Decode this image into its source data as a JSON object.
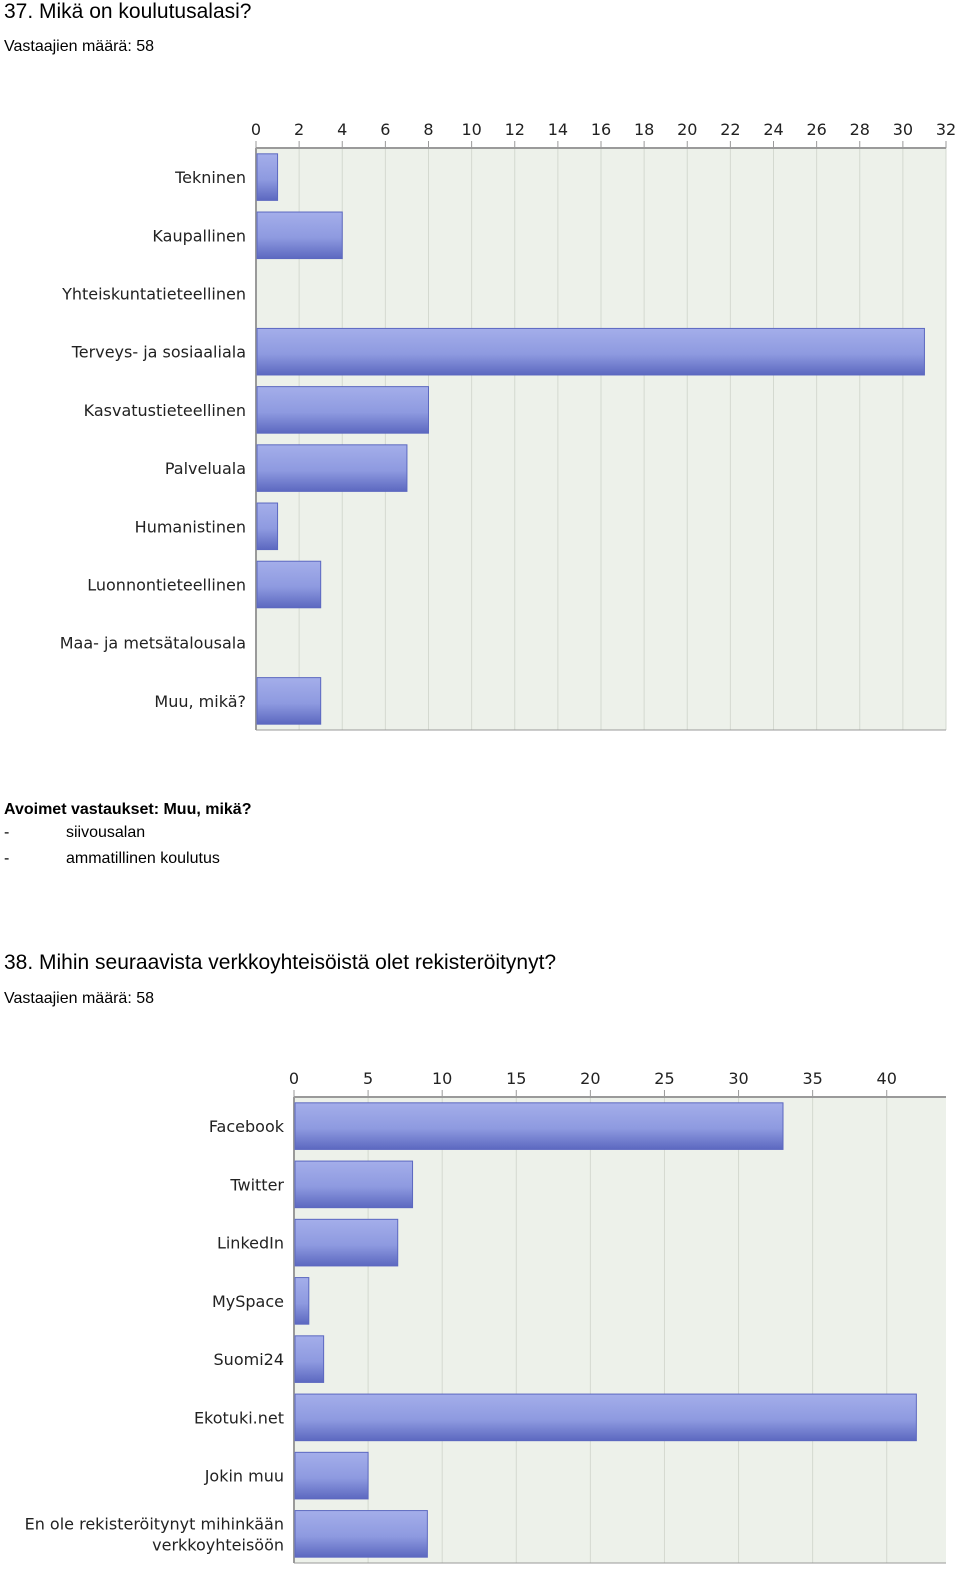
{
  "q37": {
    "title": "37. Mikä on koulutusalasi?",
    "respondents": "Vastaajien määrä: 58"
  },
  "open_answers": {
    "heading": "Avoimet vastaukset: Muu, mikä?",
    "items": [
      {
        "bullet": "-",
        "text": "siivousalan"
      },
      {
        "bullet": "-",
        "text": "ammatillinen koulutus"
      }
    ]
  },
  "q38": {
    "title": "38. Mihin seuraavista verkkoyhteisöistä olet rekisteröitynyt?",
    "respondents": "Vastaajien määrä: 58"
  },
  "chart_data": [
    {
      "type": "bar",
      "orientation": "horizontal",
      "categories": [
        "Tekninen",
        "Kaupallinen",
        "Yhteiskuntatieteellinen",
        "Terveys- ja sosiaaliala",
        "Kasvatustieteellinen",
        "Palveluala",
        "Humanistinen",
        "Luonnontieteellinen",
        "Maa- ja metsätalousala",
        "Muu, mikä?"
      ],
      "values": [
        1,
        4,
        0,
        31,
        8,
        7,
        1,
        3,
        0,
        3
      ],
      "xlim": [
        0,
        32
      ],
      "xticks": [
        0,
        2,
        4,
        6,
        8,
        10,
        12,
        14,
        16,
        18,
        20,
        22,
        24,
        26,
        28,
        30,
        32
      ],
      "tick_position": "top",
      "grid": true,
      "colors": {
        "bar": "#8e9ae0",
        "bar_dark": "#5c68c0",
        "plot_bg": "#edf1ea",
        "grid": "#d4d9d0",
        "axis": "#9a9a9a"
      }
    },
    {
      "type": "bar",
      "orientation": "horizontal",
      "categories": [
        "Facebook",
        "Twitter",
        "LinkedIn",
        "MySpace",
        "Suomi24",
        "Ekotuki.net",
        "Jokin muu",
        "En ole rekisteröitynyt mihinkään verkkoyhteisöön"
      ],
      "category_lines": [
        [
          "Facebook"
        ],
        [
          "Twitter"
        ],
        [
          "LinkedIn"
        ],
        [
          "MySpace"
        ],
        [
          "Suomi24"
        ],
        [
          "Ekotuki.net"
        ],
        [
          "Jokin muu"
        ],
        [
          "En ole rekisteröitynyt mihinkään",
          "verkkoyhteisöön"
        ]
      ],
      "values": [
        33,
        8,
        7,
        1,
        2,
        42,
        5,
        9
      ],
      "xlim": [
        0,
        44
      ],
      "xticks": [
        0,
        5,
        10,
        15,
        20,
        25,
        30,
        35,
        40
      ],
      "tick_position": "top",
      "grid": true,
      "colors": {
        "bar": "#8e9ae0",
        "bar_dark": "#5c68c0",
        "plot_bg": "#edf1ea",
        "grid": "#d4d9d0",
        "axis": "#9a9a9a"
      }
    }
  ]
}
